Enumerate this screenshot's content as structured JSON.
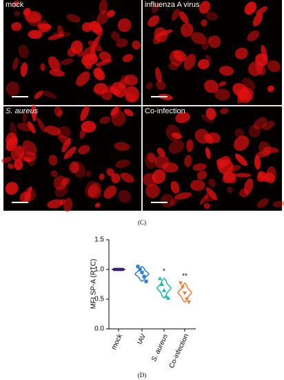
{
  "panels": [
    {
      "label": "mock"
    },
    {
      "label": "influenza A virus"
    },
    {
      "label": "S. aureus"
    },
    {
      "label": "Co-infection"
    }
  ],
  "captions": {
    "c": "(C)",
    "d": "(D)"
  },
  "chart_data": {
    "type": "violin",
    "ylabel": "MFI SP-A (RTC)",
    "categories": [
      "mock",
      "IAV",
      "S. aureus",
      "Co-infection"
    ],
    "colors": [
      "#3b1f6e",
      "#2f7fd0",
      "#1fb5b0",
      "#f07a3a"
    ],
    "values": [
      [
        1.0,
        1.0,
        1.0,
        1.0,
        1.0
      ],
      [
        1.05,
        1.0,
        0.95,
        0.88,
        0.8
      ],
      [
        0.85,
        0.75,
        0.65,
        0.55,
        0.52
      ],
      [
        0.77,
        0.7,
        0.6,
        0.5,
        0.45
      ]
    ],
    "significance": [
      null,
      null,
      "*",
      "**"
    ],
    "ylim": [
      0,
      1.5
    ],
    "yticks": [
      {
        "value": 0,
        "label": "0.0"
      },
      {
        "value": 0.5,
        "label": "0.5"
      },
      {
        "value": 1,
        "label": "1.0"
      },
      {
        "value": 1.5,
        "label": "1.5"
      }
    ]
  }
}
